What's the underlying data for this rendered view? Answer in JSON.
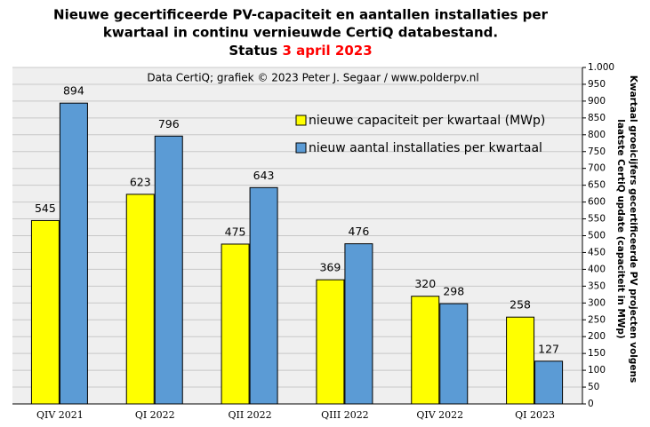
{
  "chart_data": {
    "type": "bar",
    "title": [
      "Nieuwe gecertificeerde PV-capaciteit en aantallen installaties per",
      "kwartaal in continu vernieuwde CertiQ databestand."
    ],
    "status_label": "Status",
    "status_date": "3 april 2023",
    "annotation": "Data CertiQ; grafiek © 2023 Peter J. Segaar / www.polderpv.nl",
    "y_label": [
      "Kwartaal groeicijfers gecertificeerde PV projecten volgens",
      "laatste CertiQ update (capaciteit in MWp)"
    ],
    "categories": [
      "QIV 2021",
      "QI 2022",
      "QII 2022",
      "QIII 2022",
      "QIV 2022",
      "QI 2023"
    ],
    "series": [
      {
        "name": "nieuwe capaciteit per kwartaal (MWp)",
        "color": "#ffff00",
        "values": [
          545,
          623,
          475,
          369,
          320,
          258
        ]
      },
      {
        "name": "nieuw aantal installaties per kwartaal",
        "color": "#5b9bd5",
        "values": [
          894,
          796,
          643,
          476,
          298,
          127
        ]
      }
    ],
    "ylim": [
      0,
      1000
    ],
    "yticks": [
      0,
      50,
      100,
      150,
      200,
      250,
      300,
      350,
      400,
      450,
      500,
      550,
      600,
      650,
      700,
      750,
      800,
      850,
      900,
      950,
      {
        "value": 1000,
        "label": "1.000"
      }
    ],
    "grid": true,
    "y_axis_side": "right"
  }
}
